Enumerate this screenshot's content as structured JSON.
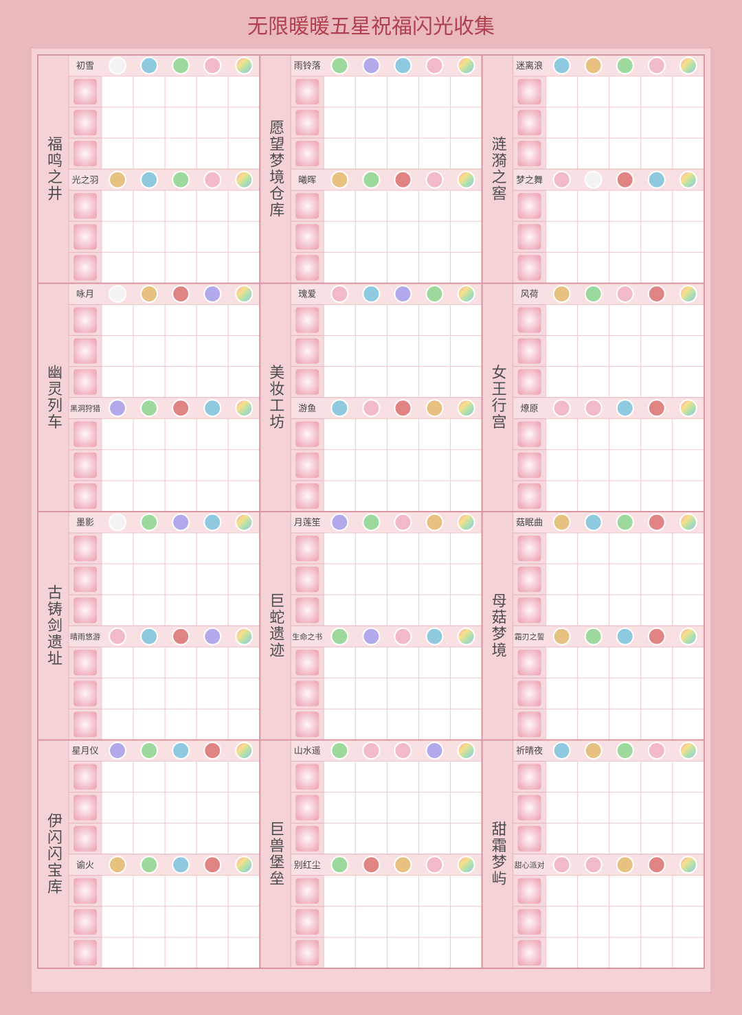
{
  "title": "无限暖暖五星祝福闪光收集",
  "regions": [
    {
      "name": "福鸣之井",
      "sets": [
        {
          "name": "初雪",
          "orbs": [
            "white",
            "blue",
            "green",
            "pink",
            "rainbow"
          ]
        },
        {
          "name": "光之羽",
          "orbs": [
            "gold",
            "blue",
            "green",
            "pink",
            "rainbow"
          ]
        }
      ]
    },
    {
      "name": "愿望梦境仓库",
      "sets": [
        {
          "name": "雨铃落",
          "orbs": [
            "green",
            "purple",
            "blue",
            "pink",
            "rainbow"
          ]
        },
        {
          "name": "曦晖",
          "orbs": [
            "gold",
            "green",
            "red",
            "pink",
            "rainbow"
          ]
        }
      ]
    },
    {
      "name": "涟漪之窖",
      "sets": [
        {
          "name": "迷离浪",
          "orbs": [
            "blue",
            "gold",
            "green",
            "pink",
            "rainbow"
          ]
        },
        {
          "name": "梦之舞",
          "orbs": [
            "pink",
            "white",
            "red",
            "blue",
            "rainbow"
          ]
        }
      ]
    },
    {
      "name": "幽灵列车",
      "sets": [
        {
          "name": "咏月",
          "orbs": [
            "white",
            "gold",
            "red",
            "purple",
            "rainbow"
          ]
        },
        {
          "name": "黑洞狩猎",
          "orbs": [
            "purple",
            "green",
            "red",
            "blue",
            "rainbow"
          ]
        }
      ]
    },
    {
      "name": "美妆工坊",
      "sets": [
        {
          "name": "瑰爱",
          "orbs": [
            "pink",
            "blue",
            "purple",
            "green",
            "rainbow"
          ]
        },
        {
          "name": "游鱼",
          "orbs": [
            "blue",
            "pink",
            "red",
            "gold",
            "rainbow"
          ]
        }
      ]
    },
    {
      "name": "女王行宫",
      "sets": [
        {
          "name": "风荷",
          "orbs": [
            "gold",
            "green",
            "pink",
            "red",
            "rainbow"
          ]
        },
        {
          "name": "燎原",
          "orbs": [
            "pink",
            "pink",
            "blue",
            "red",
            "rainbow"
          ]
        }
      ]
    },
    {
      "name": "古铸剑遗址",
      "sets": [
        {
          "name": "墨影",
          "orbs": [
            "white",
            "green",
            "purple",
            "blue",
            "rainbow"
          ]
        },
        {
          "name": "晴雨悠游",
          "orbs": [
            "pink",
            "blue",
            "red",
            "purple",
            "rainbow"
          ]
        }
      ]
    },
    {
      "name": "巨蛇遗迹",
      "sets": [
        {
          "name": "月莲笙",
          "orbs": [
            "purple",
            "green",
            "pink",
            "gold",
            "rainbow"
          ]
        },
        {
          "name": "生命之书",
          "orbs": [
            "green",
            "purple",
            "pink",
            "blue",
            "rainbow"
          ]
        }
      ]
    },
    {
      "name": "母菇梦境",
      "sets": [
        {
          "name": "菇眠曲",
          "orbs": [
            "gold",
            "blue",
            "green",
            "red",
            "rainbow"
          ]
        },
        {
          "name": "霜刃之誓",
          "orbs": [
            "gold",
            "green",
            "blue",
            "red",
            "rainbow"
          ]
        }
      ]
    },
    {
      "name": "伊闪闪宝库",
      "sets": [
        {
          "name": "星月仪",
          "orbs": [
            "purple",
            "green",
            "blue",
            "red",
            "rainbow"
          ]
        },
        {
          "name": "谕火",
          "orbs": [
            "gold",
            "green",
            "blue",
            "red",
            "rainbow"
          ]
        }
      ]
    },
    {
      "name": "巨兽堡垒",
      "sets": [
        {
          "name": "山水遥",
          "orbs": [
            "green",
            "pink",
            "pink",
            "purple",
            "rainbow"
          ]
        },
        {
          "name": "别红尘",
          "orbs": [
            "green",
            "red",
            "gold",
            "pink",
            "rainbow"
          ]
        }
      ]
    },
    {
      "name": "甜霜梦屿",
      "sets": [
        {
          "name": "祈晴夜",
          "orbs": [
            "blue",
            "gold",
            "green",
            "pink",
            "rainbow"
          ]
        },
        {
          "name": "甜心派对",
          "orbs": [
            "pink",
            "pink",
            "gold",
            "red",
            "rainbow"
          ]
        }
      ]
    }
  ]
}
